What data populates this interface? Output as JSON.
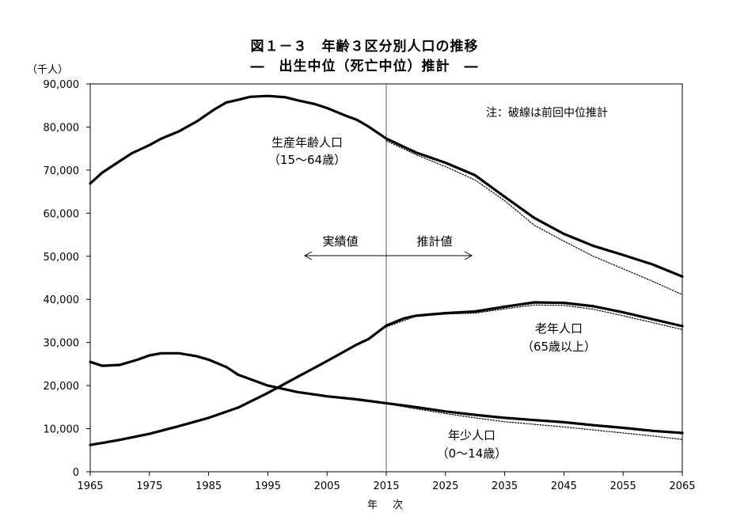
{
  "title": "図１－３　年齢３区分別人口の推移",
  "subtitle": "―　出生中位（死亡中位）推計　―",
  "note": "注：破線は前回中位推計",
  "chart_data": {
    "type": "line",
    "ylabel": "（千人）",
    "xlabel": "年　次",
    "xlim": [
      1965,
      2065
    ],
    "ylim": [
      0,
      90000
    ],
    "x_ticks": [
      1965,
      1975,
      1985,
      1995,
      2005,
      2015,
      2025,
      2035,
      2045,
      2055,
      2065
    ],
    "x_tick_labels": [
      "1965",
      "1975",
      "1985",
      "1995",
      "2005",
      "2015",
      "2025",
      "2035",
      "2045",
      "2055",
      "2065"
    ],
    "y_ticks": [
      0,
      10000,
      20000,
      30000,
      40000,
      50000,
      60000,
      70000,
      80000,
      90000
    ],
    "y_tick_labels": [
      "0",
      "10,000",
      "20,000",
      "30,000",
      "40,000",
      "50,000",
      "60,000",
      "70,000",
      "80,000",
      "90,000"
    ],
    "divider_year": 2015,
    "period_labels": {
      "actual": "実績値",
      "projected": "推計値"
    },
    "series": [
      {
        "name": "生産年齢人口",
        "label_lines": [
          "生産年齢人口",
          "（15～64歳）"
        ],
        "style": "solid",
        "x": [
          1965,
          1967,
          1970,
          1972,
          1975,
          1977,
          1980,
          1983,
          1986,
          1988,
          1990,
          1992,
          1995,
          1998,
          2000,
          2003,
          2005,
          2008,
          2010,
          2012,
          2015,
          2020,
          2025,
          2030,
          2035,
          2040,
          2045,
          2050,
          2055,
          2060,
          2065
        ],
        "values": [
          66900,
          69400,
          72100,
          73900,
          75800,
          77300,
          79000,
          81300,
          84100,
          85700,
          86300,
          87000,
          87200,
          86900,
          86200,
          85300,
          84400,
          82700,
          81700,
          80100,
          77300,
          74100,
          71700,
          68800,
          63800,
          58900,
          55200,
          52400,
          50300,
          48100,
          45300
        ]
      },
      {
        "name": "生産年齢人口（前回推計）",
        "style": "dashed",
        "x": [
          2015,
          2020,
          2025,
          2030,
          2035,
          2040,
          2045,
          2050,
          2055,
          2060,
          2065
        ],
        "values": [
          76800,
          73600,
          70800,
          67700,
          62900,
          57200,
          53500,
          50000,
          47100,
          44200,
          41100
        ]
      },
      {
        "name": "老年人口",
        "label_lines": [
          "老年人口",
          "（65歳以上）"
        ],
        "style": "solid",
        "x": [
          1965,
          1970,
          1975,
          1980,
          1985,
          1990,
          1995,
          2000,
          2005,
          2010,
          2012,
          2015,
          2018,
          2020,
          2025,
          2030,
          2035,
          2040,
          2045,
          2050,
          2055,
          2060,
          2065
        ],
        "values": [
          6200,
          7400,
          8800,
          10600,
          12500,
          14900,
          18300,
          22000,
          25700,
          29500,
          30800,
          33900,
          35600,
          36200,
          36800,
          37200,
          38300,
          39300,
          39200,
          38400,
          37000,
          35400,
          33800
        ]
      },
      {
        "name": "老年人口（前回推計）",
        "style": "dashed",
        "x": [
          2015,
          2020,
          2025,
          2030,
          2035,
          2040,
          2045,
          2050,
          2055,
          2060,
          2065
        ],
        "values": [
          33600,
          36100,
          36600,
          36800,
          37800,
          38700,
          38600,
          37700,
          36200,
          34600,
          33000
        ]
      },
      {
        "name": "年少人口",
        "label_lines": [
          "年少人口",
          "（0～14歳）"
        ],
        "style": "solid",
        "x": [
          1965,
          1967,
          1970,
          1973,
          1975,
          1977,
          1980,
          1983,
          1985,
          1988,
          1990,
          1995,
          2000,
          2005,
          2010,
          2015,
          2020,
          2025,
          2030,
          2035,
          2040,
          2045,
          2050,
          2055,
          2060,
          2065
        ],
        "values": [
          25500,
          24600,
          24800,
          26000,
          27000,
          27500,
          27500,
          26800,
          26000,
          24300,
          22500,
          20000,
          18500,
          17500,
          16800,
          15900,
          15000,
          14000,
          13200,
          12500,
          12000,
          11500,
          10800,
          10200,
          9500,
          9000
        ]
      },
      {
        "name": "年少人口（前回推計）",
        "style": "dashed",
        "x": [
          2015,
          2020,
          2025,
          2030,
          2035,
          2040,
          2045,
          2050,
          2055,
          2060,
          2065
        ],
        "values": [
          15800,
          14600,
          13500,
          12500,
          11600,
          11000,
          10400,
          9700,
          9000,
          8300,
          7500
        ]
      }
    ]
  }
}
